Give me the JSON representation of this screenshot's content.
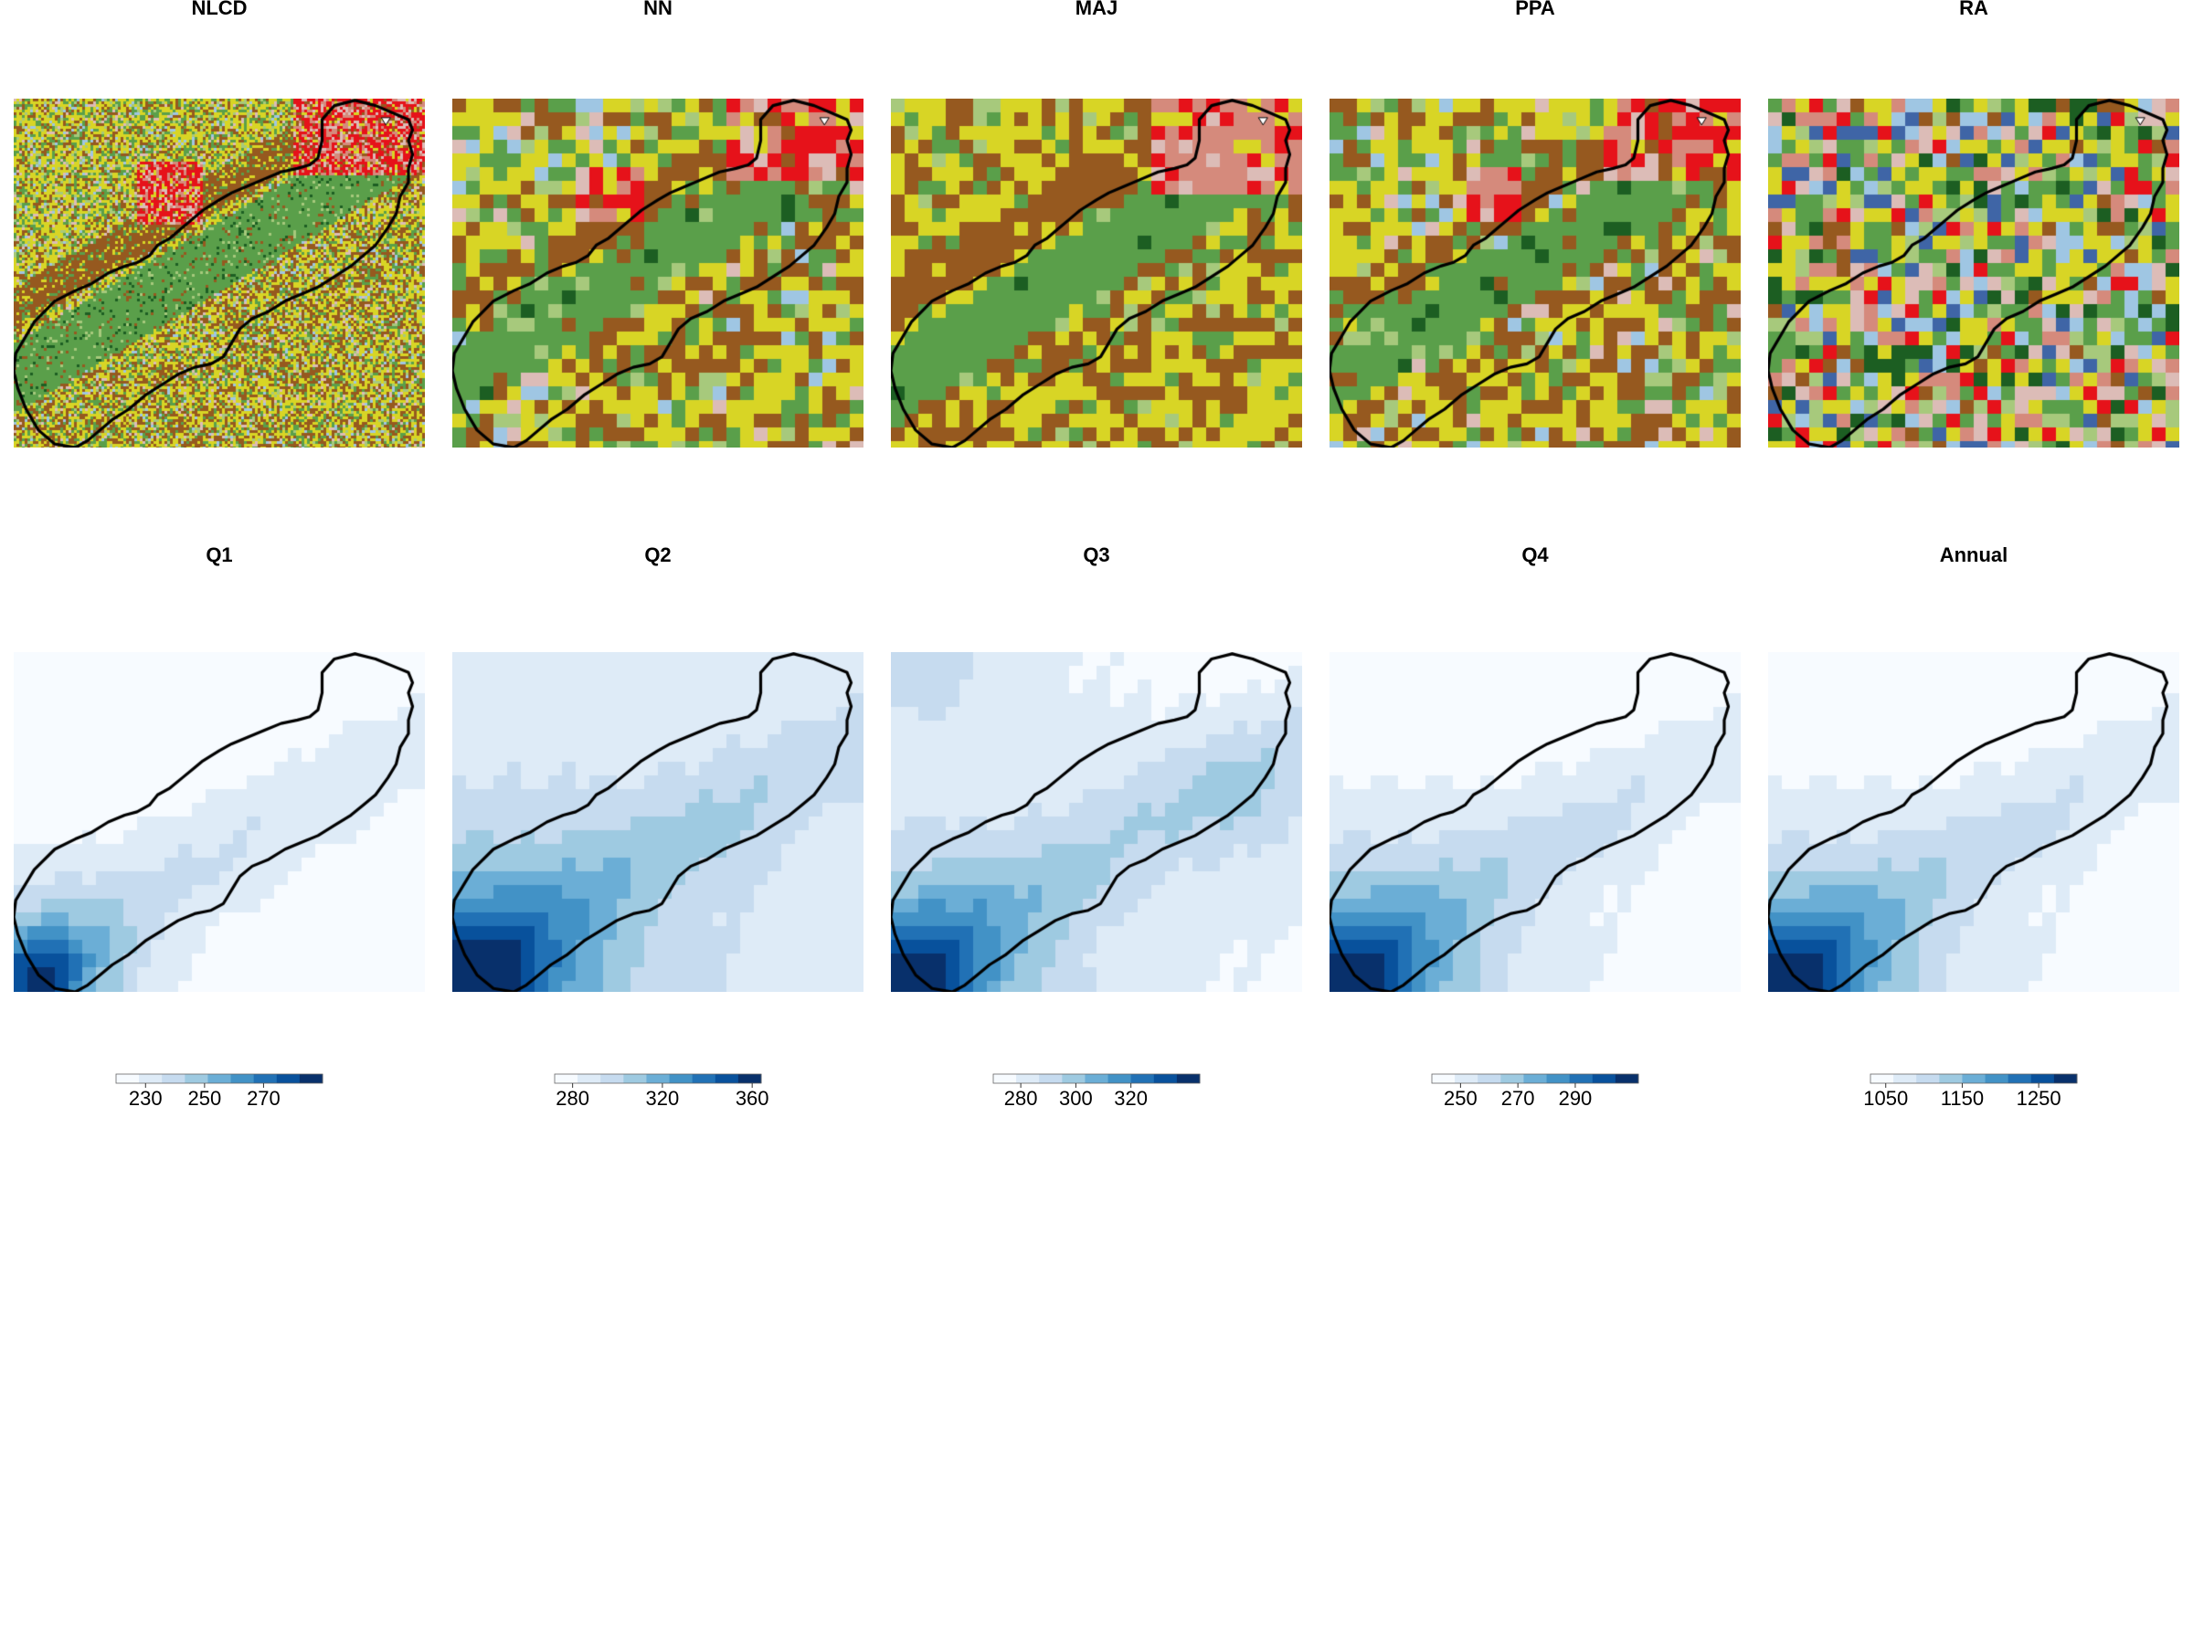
{
  "rows": [
    {
      "kind": "landcover",
      "panels": [
        {
          "title": "NLCD",
          "style": "fine"
        },
        {
          "title": "NN",
          "style": "coarse"
        },
        {
          "title": "MAJ",
          "style": "majority"
        },
        {
          "title": "PPA",
          "style": "ppa"
        },
        {
          "title": "RA",
          "style": "random"
        }
      ]
    },
    {
      "kind": "precipitation",
      "panels": [
        {
          "title": "Q1",
          "legend": {
            "min": 220,
            "max": 290,
            "ticks": [
              230,
              250,
              270
            ]
          }
        },
        {
          "title": "Q2",
          "legend": {
            "min": 272,
            "max": 364,
            "ticks": [
              280,
              320,
              360
            ]
          }
        },
        {
          "title": "Q3",
          "legend": {
            "min": 270,
            "max": 345,
            "ticks": [
              280,
              300,
              320
            ]
          }
        },
        {
          "title": "Q4",
          "legend": {
            "min": 240,
            "max": 312,
            "ticks": [
              250,
              270,
              290
            ]
          }
        },
        {
          "title": "Annual",
          "legend": {
            "min": 1030,
            "max": 1300,
            "ticks": [
              1050,
              1150,
              1250
            ]
          }
        }
      ]
    }
  ],
  "colors": {
    "landcover": {
      "forest": "#5a9f4a",
      "shrub": "#96591f",
      "agriculture": "#d8d525",
      "developed_high": "#e6121a",
      "developed_med": "#d58a7c",
      "developed_low": "#dcbcb7",
      "grassland": "#a7c97c",
      "evergreen": "#1c5e22",
      "wetland": "#9fc6e3",
      "water": "#3f65a6"
    },
    "precip_ramp": [
      "#f7fbff",
      "#deebf7",
      "#c6dbef",
      "#9ecae1",
      "#6baed6",
      "#4292c6",
      "#2171b5",
      "#08519c",
      "#08306b"
    ],
    "boundary": "#000000"
  }
}
